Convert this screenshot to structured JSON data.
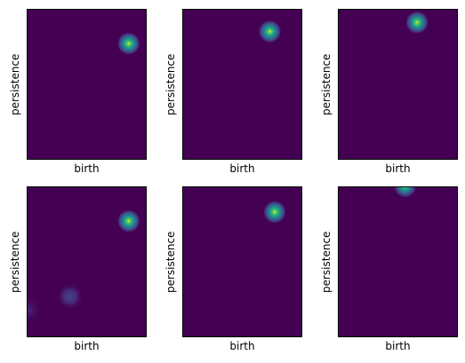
{
  "colors": {
    "background": "#440154",
    "colormap": "viridis",
    "frame": "#000000"
  },
  "chart_data": [
    {
      "type": "heatmap",
      "xlabel": "birth",
      "ylabel": "persistence",
      "xticks": [],
      "yticks": [],
      "blobs": [
        {
          "x": 0.85,
          "y": 0.77,
          "intensity": 1.0,
          "spread": 0.06
        }
      ]
    },
    {
      "type": "heatmap",
      "xlabel": "birth",
      "ylabel": "persistence",
      "xticks": [],
      "yticks": [],
      "blobs": [
        {
          "x": 0.73,
          "y": 0.85,
          "intensity": 1.0,
          "spread": 0.06
        },
        {
          "x": 0.58,
          "y": 0.04,
          "intensity": 0.1,
          "spread": 0.06
        }
      ]
    },
    {
      "type": "heatmap",
      "xlabel": "birth",
      "ylabel": "persistence",
      "xticks": [],
      "yticks": [],
      "blobs": [
        {
          "x": 0.66,
          "y": 0.91,
          "intensity": 1.0,
          "spread": 0.06
        }
      ]
    },
    {
      "type": "heatmap",
      "xlabel": "birth",
      "ylabel": "persistence",
      "xticks": [],
      "yticks": [],
      "blobs": [
        {
          "x": 0.85,
          "y": 0.77,
          "intensity": 1.0,
          "spread": 0.06
        },
        {
          "x": 0.36,
          "y": 0.27,
          "intensity": 0.32,
          "spread": 0.07
        },
        {
          "x": 0.02,
          "y": 0.18,
          "intensity": 0.22,
          "spread": 0.07
        }
      ]
    },
    {
      "type": "heatmap",
      "xlabel": "birth",
      "ylabel": "persistence",
      "xticks": [],
      "yticks": [],
      "blobs": [
        {
          "x": 0.77,
          "y": 0.83,
          "intensity": 1.0,
          "spread": 0.06
        },
        {
          "x": 0.36,
          "y": 0.0,
          "intensity": 0.06,
          "spread": 0.05
        }
      ]
    },
    {
      "type": "heatmap",
      "xlabel": "birth",
      "ylabel": "persistence",
      "xticks": [],
      "yticks": [],
      "blobs": [
        {
          "x": 0.56,
          "y": 1.0,
          "intensity": 0.9,
          "spread": 0.06
        }
      ]
    }
  ]
}
